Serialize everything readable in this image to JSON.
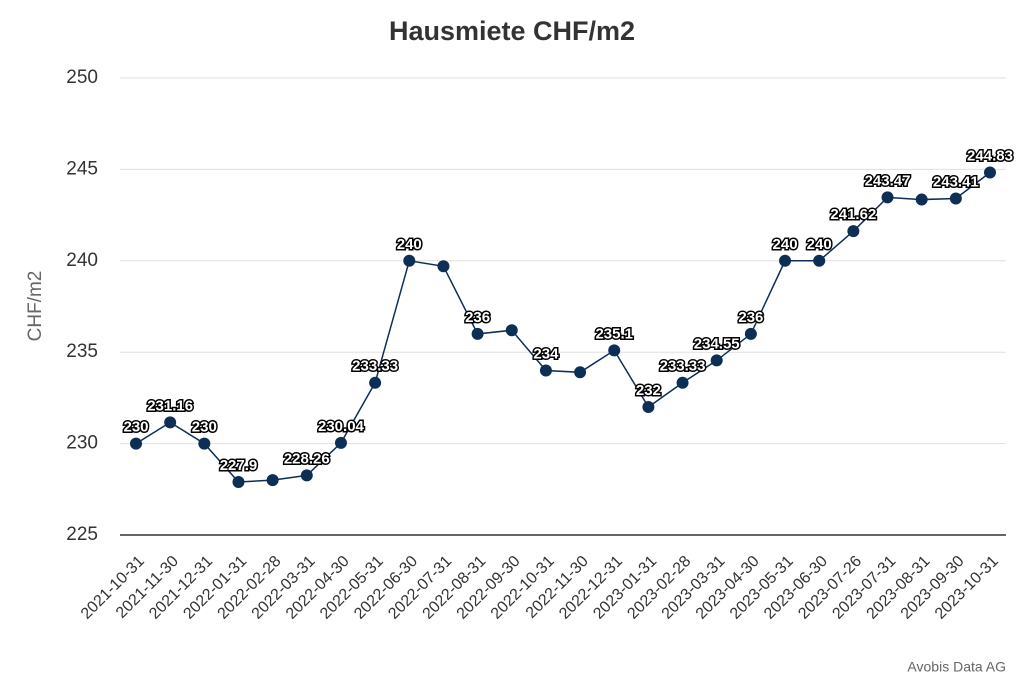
{
  "chart_data": {
    "type": "line",
    "title": "Hausmiete CHF/m2",
    "y_label": "CHF/m2",
    "source": "Avobis Data AG",
    "categories": [
      "2021-10-31",
      "2021-11-30",
      "2021-12-31",
      "2022-01-31",
      "2022-02-28",
      "2022-03-31",
      "2022-04-30",
      "2022-05-31",
      "2022-06-30",
      "2022-07-31",
      "2022-08-31",
      "2022-09-30",
      "2022-10-31",
      "2022-11-30",
      "2022-12-31",
      "2023-01-31",
      "2023-02-28",
      "2023-03-31",
      "2023-04-30",
      "2023-05-31",
      "2023-06-30",
      "2023-07-26",
      "2023-07-31",
      "2023-08-31",
      "2023-09-30",
      "2023-10-31"
    ],
    "series": [
      {
        "name": "Hausmiete",
        "color": "#0d2e55",
        "values": [
          230,
          231.16,
          230,
          227.9,
          228.0,
          228.26,
          230.04,
          233.33,
          240,
          239.7,
          236,
          236.2,
          234,
          233.9,
          235.1,
          232,
          233.33,
          234.55,
          236,
          240,
          240,
          241.62,
          243.47,
          243.35,
          243.41,
          244.83
        ],
        "value_labels": [
          "230",
          "231.16",
          "230",
          "227.9",
          null,
          "228.26",
          "230.04",
          "233.33",
          "240",
          null,
          "236",
          null,
          "234",
          null,
          "235.1",
          "232",
          "233.33",
          "234.55",
          "236",
          "240",
          "240",
          "241.62",
          "243.47",
          null,
          "243.41",
          "244.83"
        ]
      }
    ],
    "ylim": [
      225,
      250
    ],
    "yticks": [
      225,
      230,
      235,
      240,
      245,
      250
    ],
    "grid": true
  }
}
